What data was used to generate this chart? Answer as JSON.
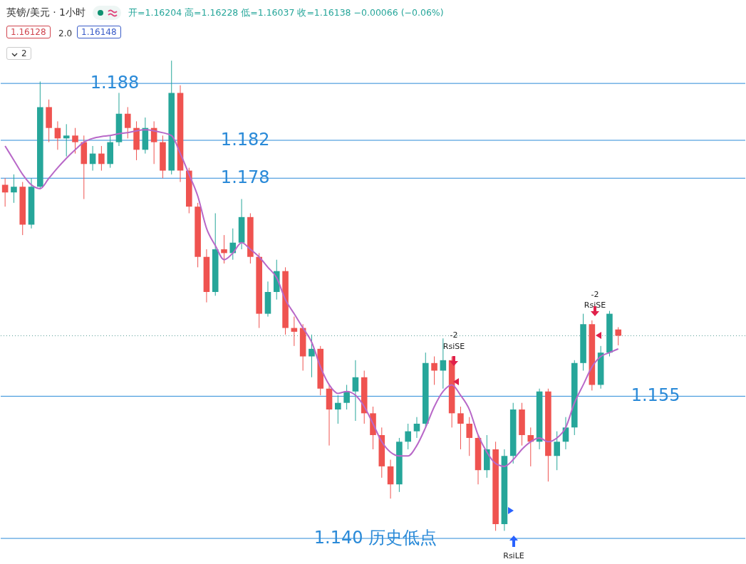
{
  "chart_data": {
    "type": "candlestick",
    "title": "英镑/美元 · 1小时",
    "subtitle": "开=1.16204 高=1.16228 低=1.16037 收=1.16138 −0.00066 (−0.06%)",
    "categories": [
      null,
      null,
      null,
      null,
      null,
      null,
      null,
      null,
      null,
      null,
      null,
      null,
      null,
      null,
      null,
      null,
      null,
      null,
      null,
      null,
      null,
      null,
      null,
      null,
      null,
      null,
      null,
      null,
      null,
      null,
      null,
      null,
      null,
      null,
      null,
      null,
      null,
      null,
      null,
      null,
      null,
      null,
      null,
      null,
      null,
      null,
      null,
      null,
      null,
      null,
      null,
      null,
      null,
      null,
      null,
      null,
      null,
      null,
      null,
      null,
      null,
      null,
      null,
      null,
      null,
      null,
      null,
      null,
      null,
      null,
      null,
      null,
      null,
      null,
      null,
      null,
      null,
      null,
      null,
      null,
      null,
      null,
      null,
      null,
      null
    ],
    "ohlc": [
      [
        1.1773,
        1.178,
        1.175,
        1.1765
      ],
      [
        1.1765,
        1.1784,
        1.1754,
        1.1771
      ],
      [
        1.1771,
        1.1776,
        1.172,
        1.1731
      ],
      [
        1.1731,
        1.178,
        1.1727,
        1.1771
      ],
      [
        1.1771,
        1.1882,
        1.1769,
        1.1855
      ],
      [
        1.1855,
        1.1863,
        1.1818,
        1.1833
      ],
      [
        1.1833,
        1.184,
        1.181,
        1.1822
      ],
      [
        1.1822,
        1.1837,
        1.1803,
        1.1825
      ],
      [
        1.1825,
        1.1833,
        1.1806,
        1.1818
      ],
      [
        1.1818,
        1.1825,
        1.1758,
        1.1795
      ],
      [
        1.1795,
        1.1814,
        1.1788,
        1.1806
      ],
      [
        1.1806,
        1.1814,
        1.1788,
        1.1795
      ],
      [
        1.1795,
        1.1825,
        1.1791,
        1.1818
      ],
      [
        1.1818,
        1.187,
        1.1814,
        1.1848
      ],
      [
        1.1848,
        1.1855,
        1.1822,
        1.1833
      ],
      [
        1.1833,
        1.184,
        1.1799,
        1.181
      ],
      [
        1.181,
        1.1844,
        1.1806,
        1.1833
      ],
      [
        1.1833,
        1.184,
        1.1795,
        1.1818
      ],
      [
        1.1818,
        1.1825,
        1.178,
        1.1788
      ],
      [
        1.1788,
        1.1904,
        1.1784,
        1.187
      ],
      [
        1.187,
        1.1878,
        1.1776,
        1.1788
      ],
      [
        1.1788,
        1.1791,
        1.1743,
        1.175
      ],
      [
        1.175,
        1.1754,
        1.1686,
        1.1697
      ],
      [
        1.1697,
        1.1705,
        1.1649,
        1.166
      ],
      [
        1.166,
        1.1743,
        1.1656,
        1.1705
      ],
      [
        1.1705,
        1.172,
        1.169,
        1.1701
      ],
      [
        1.1701,
        1.1727,
        1.1694,
        1.1712
      ],
      [
        1.1712,
        1.1758,
        1.1705,
        1.1739
      ],
      [
        1.1739,
        1.1743,
        1.169,
        1.1697
      ],
      [
        1.1697,
        1.1701,
        1.1622,
        1.1637
      ],
      [
        1.1637,
        1.1671,
        1.1634,
        1.166
      ],
      [
        1.166,
        1.1694,
        1.1652,
        1.1682
      ],
      [
        1.1682,
        1.1686,
        1.1615,
        1.1622
      ],
      [
        1.1622,
        1.1634,
        1.1603,
        1.1618
      ],
      [
        1.1622,
        1.1626,
        1.1577,
        1.1592
      ],
      [
        1.1592,
        1.1615,
        1.157,
        1.16
      ],
      [
        1.16,
        1.1603,
        1.1551,
        1.1558
      ],
      [
        1.1558,
        1.1562,
        1.1498,
        1.1536
      ],
      [
        1.1536,
        1.1551,
        1.1521,
        1.1543
      ],
      [
        1.1543,
        1.1562,
        1.1536,
        1.1555
      ],
      [
        1.1555,
        1.1588,
        1.1524,
        1.157
      ],
      [
        1.157,
        1.1577,
        1.1521,
        1.1532
      ],
      [
        1.1532,
        1.1539,
        1.1494,
        1.1509
      ],
      [
        1.1509,
        1.1517,
        1.1464,
        1.1476
      ],
      [
        1.1476,
        1.1483,
        1.1442,
        1.1457
      ],
      [
        1.1457,
        1.1506,
        1.1449,
        1.1502
      ],
      [
        1.1502,
        1.1521,
        1.1494,
        1.1513
      ],
      [
        1.1513,
        1.1528,
        1.1506,
        1.1521
      ],
      [
        1.1521,
        1.1596,
        1.1517,
        1.1585
      ],
      [
        1.1585,
        1.1592,
        1.1562,
        1.1577
      ],
      [
        1.1577,
        1.1611,
        1.1558,
        1.1588
      ],
      [
        1.1588,
        1.1592,
        1.1517,
        1.1532
      ],
      [
        1.1532,
        1.1539,
        1.1494,
        1.1521
      ],
      [
        1.1521,
        1.1528,
        1.1487,
        1.1506
      ],
      [
        1.1506,
        1.1509,
        1.1457,
        1.1472
      ],
      [
        1.1472,
        1.1509,
        1.1464,
        1.1494
      ],
      [
        1.1494,
        1.1502,
        1.1408,
        1.1415
      ],
      [
        1.1415,
        1.1494,
        1.1408,
        1.1487
      ],
      [
        1.1487,
        1.1543,
        1.1479,
        1.1536
      ],
      [
        1.1536,
        1.1543,
        1.1498,
        1.1509
      ],
      [
        1.1509,
        1.1517,
        1.1476,
        1.1502
      ],
      [
        1.1502,
        1.1558,
        1.1494,
        1.1555
      ],
      [
        1.1555,
        1.1558,
        1.146,
        1.1487
      ],
      [
        1.1487,
        1.1513,
        1.1472,
        1.1502
      ],
      [
        1.1502,
        1.1528,
        1.1494,
        1.1517
      ],
      [
        1.1517,
        1.1588,
        1.1509,
        1.1585
      ],
      [
        1.1585,
        1.1637,
        1.1577,
        1.1626
      ],
      [
        1.1626,
        1.163,
        1.1556,
        1.1562
      ],
      [
        1.1562,
        1.1603,
        1.1558,
        1.1596
      ],
      [
        1.1596,
        1.164,
        1.1592,
        1.1637
      ],
      [
        1.16204,
        1.16228,
        1.16037,
        1.16138
      ],
      null,
      null,
      null,
      null,
      null,
      null,
      null,
      null,
      null,
      null,
      null,
      null,
      null,
      null
    ],
    "series": [
      {
        "type": "line",
        "color": "#b868c8",
        "values": [
          1.1814,
          1.1799,
          1.1784,
          1.1773,
          1.1769,
          1.178,
          1.1791,
          1.1801,
          1.181,
          1.1818,
          1.1822,
          1.1824,
          1.1825,
          1.1827,
          1.1828,
          1.183,
          1.1831,
          1.183,
          1.1828,
          1.1825,
          1.1806,
          1.1784,
          1.1761,
          1.1727,
          1.1709,
          1.1694,
          1.1701,
          1.1712,
          1.1705,
          1.1697,
          1.1686,
          1.1675,
          1.1652,
          1.1637,
          1.1622,
          1.1607,
          1.1581,
          1.1562,
          1.1553,
          1.1555,
          1.1551,
          1.1539,
          1.1521,
          1.1502,
          1.1491,
          1.1487,
          1.1487,
          1.1498,
          1.1517,
          1.1539,
          1.1555,
          1.1562,
          1.1551,
          1.1536,
          1.1509,
          1.1491,
          1.1479,
          1.1476,
          1.1483,
          1.1494,
          1.1502,
          1.1506,
          1.1502,
          1.1506,
          1.1517,
          1.1543,
          1.1562,
          1.1581,
          1.1592,
          1.1596,
          1.16,
          null,
          null,
          null,
          null,
          null,
          null,
          null,
          null,
          null,
          null,
          null,
          null,
          null,
          null
        ]
      }
    ],
    "ylim": [
      1.1373,
      1.1968
    ],
    "tick_labels": false,
    "ref_lines": [
      {
        "axis": "y",
        "value": 1.188,
        "label": "1.188",
        "color": "#2a8ad8"
      },
      {
        "axis": "y",
        "value": 1.182,
        "label": "1.182",
        "color": "#2a8ad8"
      },
      {
        "axis": "y",
        "value": 1.178,
        "label": "1.178",
        "color": "#2a8ad8"
      },
      {
        "axis": "y",
        "value": 1.155,
        "label": "1.155",
        "color": "#2a8ad8"
      },
      {
        "axis": "y",
        "value": 1.14,
        "label": "1.140 历史低点",
        "color": "#2a8ad8"
      },
      {
        "axis": "y",
        "value": 1.16138,
        "color": "#5a9e98",
        "line_style": "dotted"
      }
    ],
    "annotations": [
      "1.16128",
      "2.0",
      "1.16148",
      "2",
      "-2",
      "RsiSE",
      "-2",
      "RsiSE",
      "RsiLE"
    ]
  }
}
